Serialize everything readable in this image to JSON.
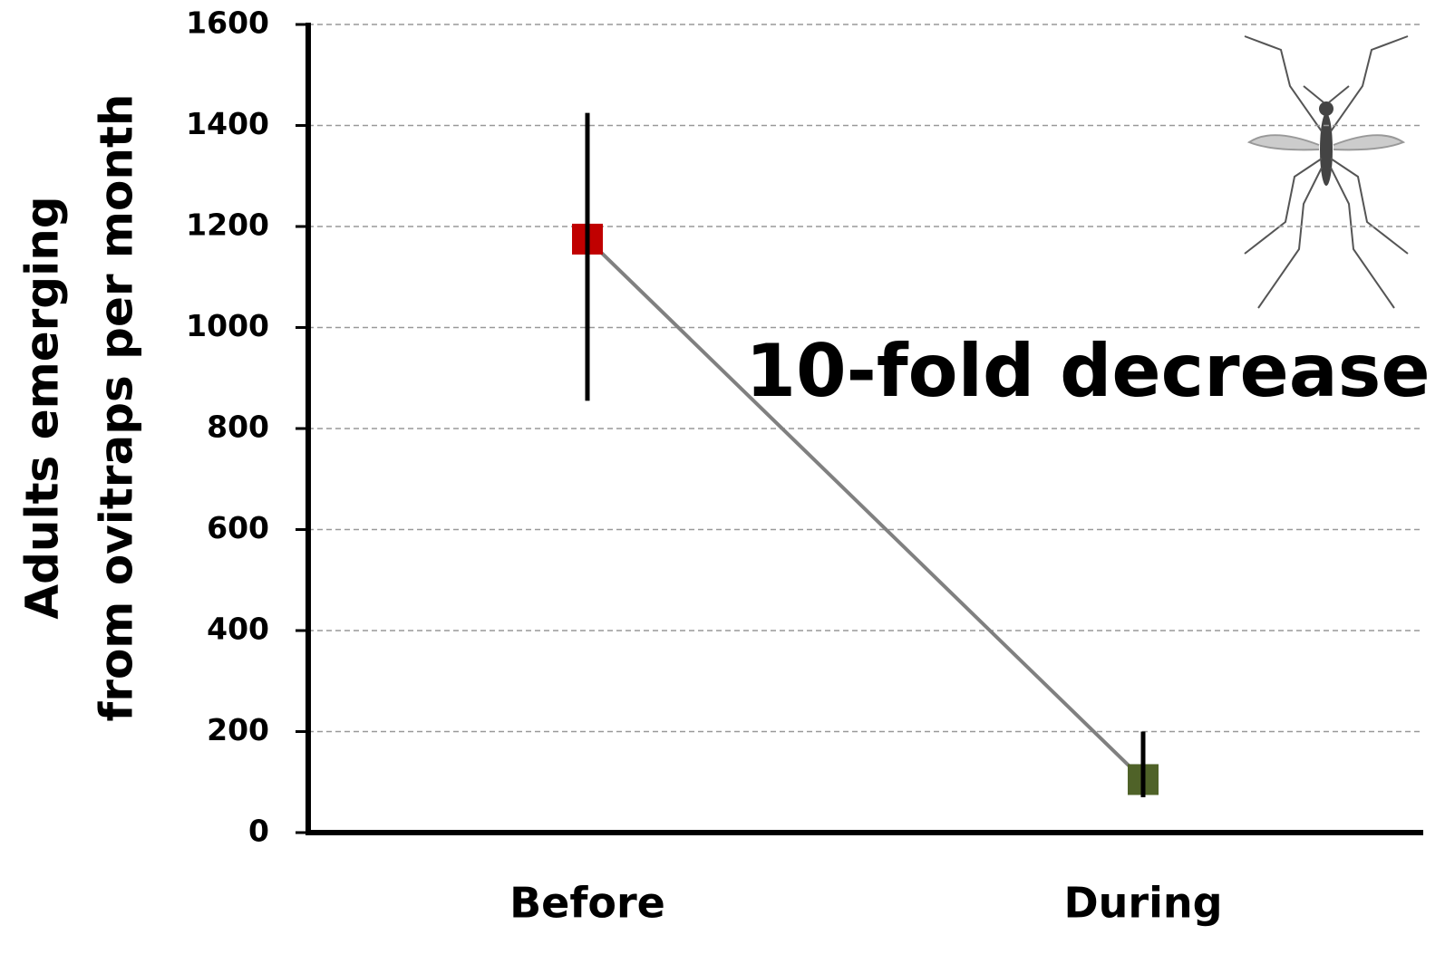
{
  "chart_data": {
    "type": "line",
    "ylabel": [
      "Adults emerging",
      "from ovitraps per month"
    ],
    "annotation": "10-fold decrease",
    "categories": [
      "Before",
      "During"
    ],
    "values": [
      1175,
      105
    ],
    "errors_minus": [
      320,
      35
    ],
    "errors_plus": [
      250,
      95
    ],
    "marker_colors": [
      "#c00000",
      "#4f6228"
    ],
    "line_color": "#808080",
    "ylim": [
      0,
      1600
    ],
    "yticks": [
      0,
      200,
      400,
      600,
      800,
      1000,
      1200,
      1400,
      1600
    ],
    "grid": true
  }
}
